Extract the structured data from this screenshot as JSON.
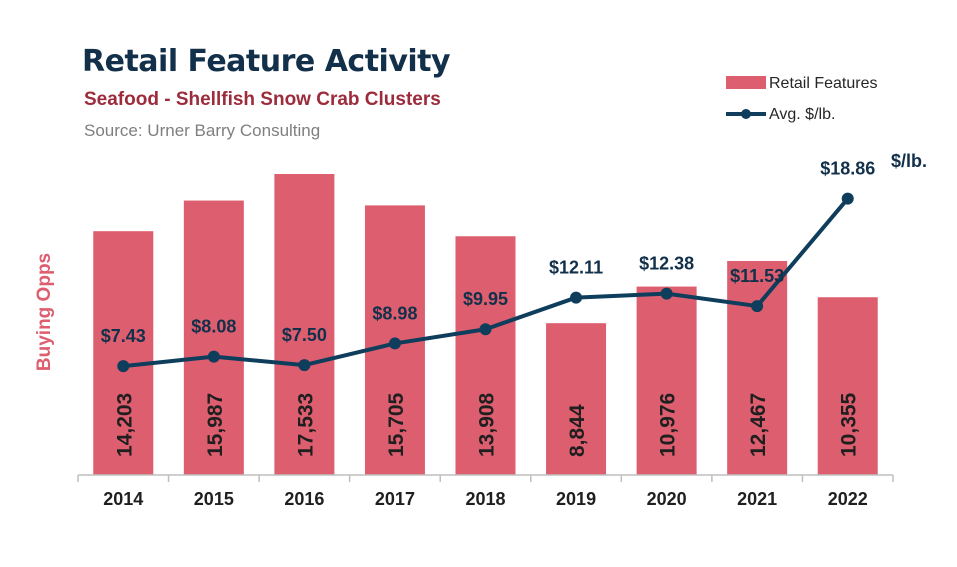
{
  "title": "Retail Feature Activity",
  "subtitle": "Seafood - Shellfish Snow Crab Clusters",
  "source": "Source: Urner Barry Consulting",
  "colors": {
    "bar": "#dd5e6f",
    "line": "#0f3d5c",
    "title": "#12304a",
    "subtitle": "#9c2b3c",
    "ylabel": "#dd5e6f"
  },
  "chart_data": {
    "type": "bar",
    "categories": [
      "2014",
      "2015",
      "2016",
      "2017",
      "2018",
      "2019",
      "2020",
      "2021",
      "2022"
    ],
    "series": [
      {
        "name": "Retail Features",
        "type": "bar",
        "axis": "left",
        "values": [
          14203,
          15987,
          17533,
          15705,
          13908,
          8844,
          10976,
          12467,
          10355
        ],
        "labels": [
          "14,203",
          "15,987",
          "17,533",
          "15,705",
          "13,908",
          "8,844",
          "10,976",
          "12,467",
          "10,355"
        ]
      },
      {
        "name": "Avg. $/lb.",
        "type": "line",
        "axis": "right",
        "values": [
          7.43,
          8.08,
          7.5,
          8.98,
          9.95,
          12.11,
          12.38,
          11.53,
          18.86
        ],
        "labels": [
          "$7.43",
          "$8.08",
          "$7.50",
          "$8.98",
          "$9.95",
          "$12.11",
          "$12.38",
          "$11.53",
          "$18.86"
        ]
      }
    ],
    "ylabel": "Buying Opps",
    "y2_unit_label": "$/lb.",
    "ylim": [
      0,
      18000
    ],
    "y2lim": [
      0,
      21.5
    ],
    "grid": false,
    "legend": "top-right"
  }
}
